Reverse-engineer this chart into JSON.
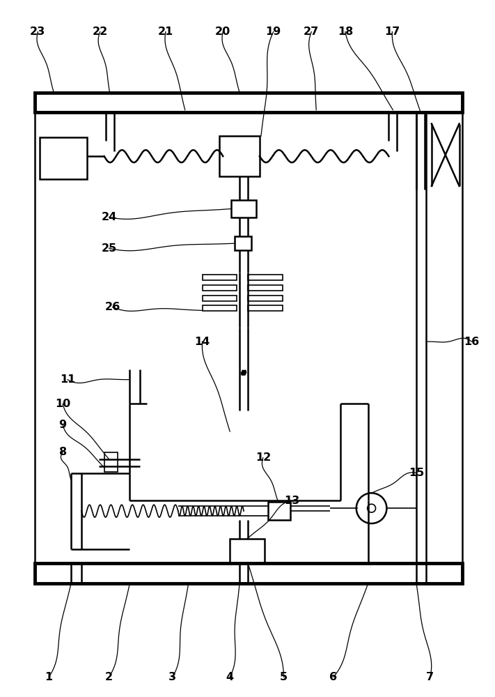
{
  "bg_color": "#ffffff",
  "line_color": "#000000",
  "figsize": [
    7.11,
    10.0
  ],
  "dpi": 100
}
